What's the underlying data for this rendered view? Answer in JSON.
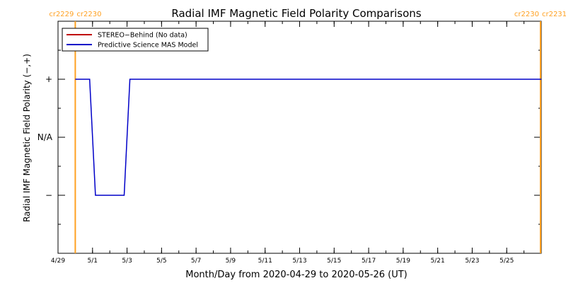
{
  "chart_data": {
    "type": "line",
    "title": "Radial IMF Magnetic Field Polarity Comparisons",
    "xlabel": "Month/Day from 2020-04-29 to 2020-05-26 (UT)",
    "ylabel": "Radial IMF Magnetic Field Polarity (−,+)",
    "x_range": [
      "2020-04-29",
      "2020-05-27"
    ],
    "y_range": [
      -2,
      2
    ],
    "x_ticks": [
      {
        "date": "2020-04-29",
        "label": "4/29"
      },
      {
        "date": "2020-05-01",
        "label": "5/1"
      },
      {
        "date": "2020-05-03",
        "label": "5/3"
      },
      {
        "date": "2020-05-05",
        "label": "5/5"
      },
      {
        "date": "2020-05-07",
        "label": "5/7"
      },
      {
        "date": "2020-05-09",
        "label": "5/9"
      },
      {
        "date": "2020-05-11",
        "label": "5/11"
      },
      {
        "date": "2020-05-13",
        "label": "5/13"
      },
      {
        "date": "2020-05-15",
        "label": "5/15"
      },
      {
        "date": "2020-05-17",
        "label": "5/17"
      },
      {
        "date": "2020-05-19",
        "label": "5/19"
      },
      {
        "date": "2020-05-21",
        "label": "5/21"
      },
      {
        "date": "2020-05-23",
        "label": "5/23"
      },
      {
        "date": "2020-05-25",
        "label": "5/25"
      }
    ],
    "y_ticks": [
      {
        "value": 1,
        "label": "+"
      },
      {
        "value": 0,
        "label": "N/A"
      },
      {
        "value": -1,
        "label": "−"
      }
    ],
    "legend_position": "top-left",
    "series": [
      {
        "name": "STEREO−Behind (No data)",
        "color": "#c00000",
        "x": [],
        "y": []
      },
      {
        "name": "Predictive Science MAS Model",
        "color": "#0000c8",
        "x": [
          "2020-04-30 00:00",
          "2020-04-30 20:00",
          "2020-05-01 04:00",
          "2020-05-02 20:00",
          "2020-05-03 04:00",
          "2020-05-27 00:00"
        ],
        "y": [
          1,
          1,
          -1,
          -1,
          1,
          1
        ]
      }
    ],
    "carrington_markers": [
      {
        "date": "2020-04-30 00:00",
        "left_label": "cr2229",
        "right_label": "cr2230",
        "color": "#ffa020"
      },
      {
        "date": "2020-05-26 23:00",
        "left_label": "cr2230",
        "right_label": "cr2231",
        "color": "#ffa020"
      }
    ]
  }
}
